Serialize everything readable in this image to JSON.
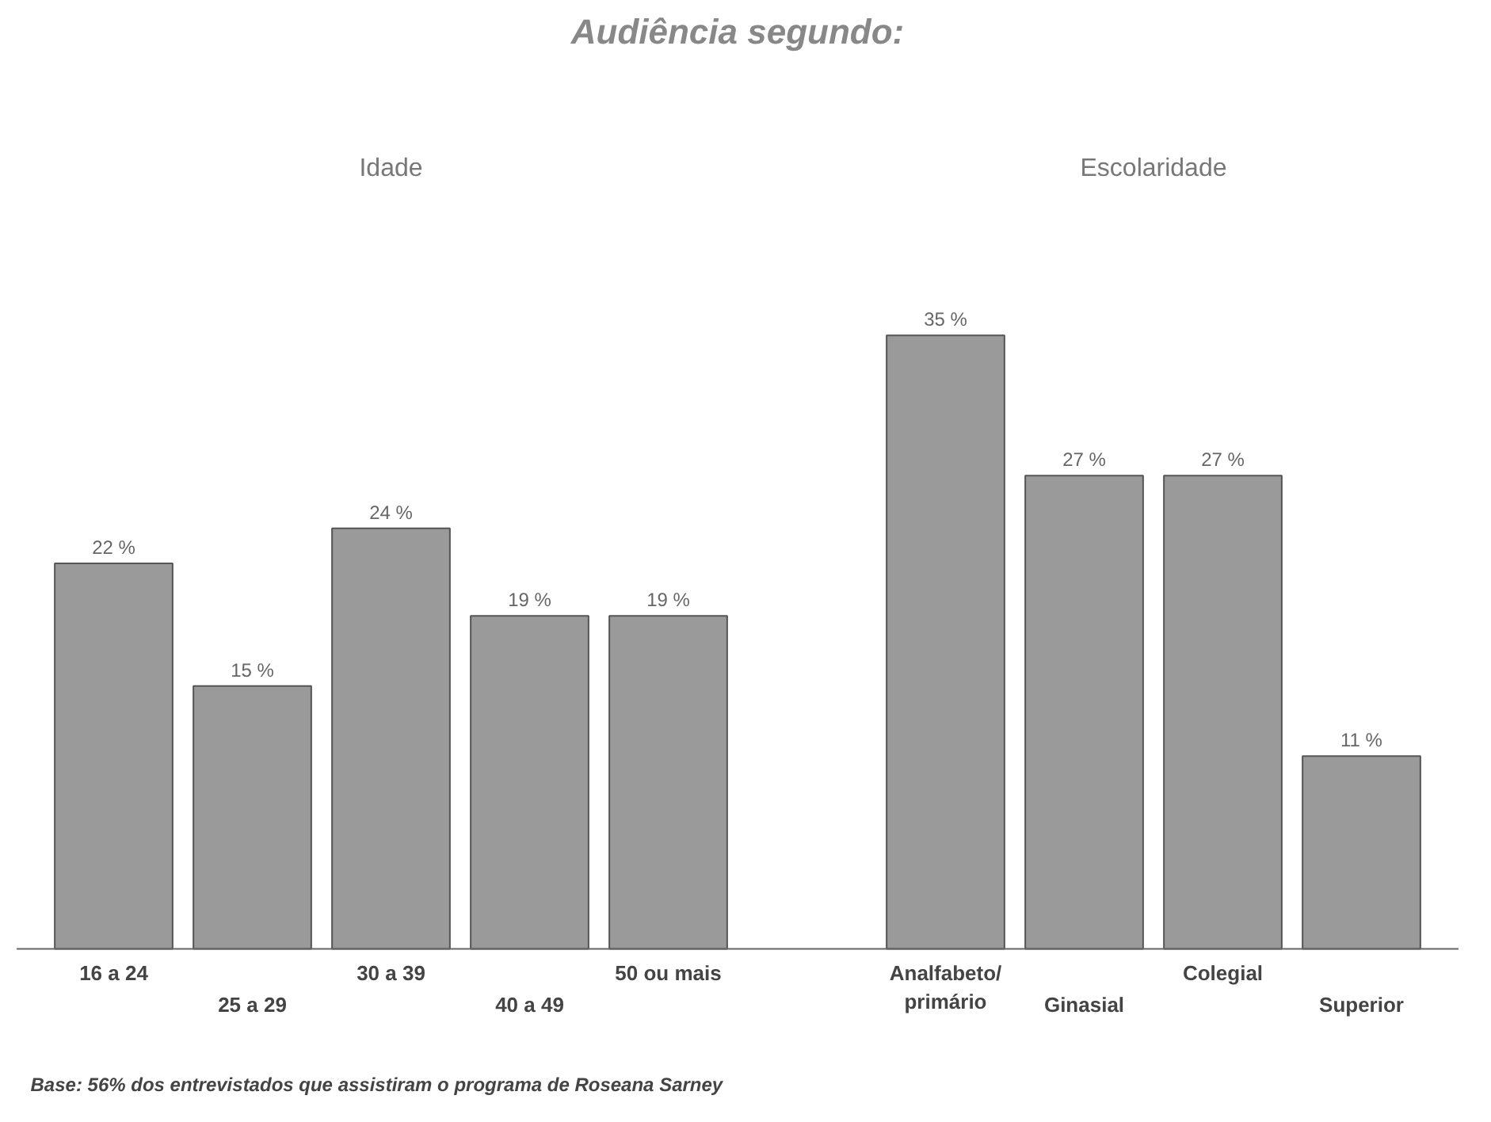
{
  "chart_data": {
    "type": "bar",
    "title": "Audiência segundo:",
    "categories": [
      "16 a 24",
      "25 a 29",
      "30 a 39",
      "40 a 49",
      "50 ou mais",
      null,
      "Analfabeto/\nprimário",
      "Ginasial",
      "Colegial",
      "Superior"
    ],
    "values": [
      22,
      15,
      24,
      19,
      19,
      null,
      35,
      27,
      27,
      11
    ],
    "value_labels": [
      "22 %",
      "15 %",
      "24 %",
      "19 %",
      "19 %",
      null,
      "35 %",
      "27 %",
      "27 %",
      "11 %"
    ],
    "color": "#9a9a9a",
    "annotations": [
      "Idade",
      "Escolaridade",
      "Base: 56% dos entrevistados que assistiram o programa de Roseana Sarney"
    ]
  }
}
